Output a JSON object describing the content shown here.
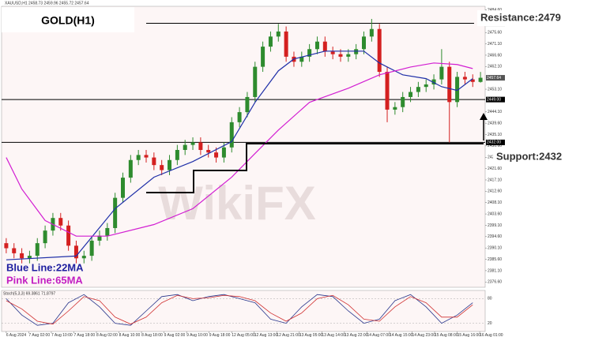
{
  "chart_data": {
    "type": "candlestick",
    "title": "GOLD(H1)",
    "header": "XAUUSD,H1 2458.73 2459.96 2455.72 2457.64",
    "watermark": "WikiFX",
    "annotations": [
      "Resistance:2479",
      "Support:2432",
      "Blue Line:22MA",
      "Pink Line:65MA"
    ],
    "up_color": "#2e8b2e",
    "down_color": "#d42020",
    "open": [
      2392,
      2390,
      2388,
      2386,
      2387,
      2392,
      2397,
      2402,
      2399,
      2391,
      2386,
      2387,
      2393,
      2395,
      2398,
      2410,
      2418,
      2425,
      2427,
      2426,
      2423,
      2421,
      2425,
      2429,
      2431,
      2432,
      2429,
      2428,
      2426,
      2430,
      2440,
      2444,
      2450,
      2462,
      2470,
      2474,
      2476,
      2466,
      2464,
      2466,
      2469,
      2472,
      2468,
      2467,
      2466,
      2467,
      2469,
      2474,
      2477,
      2460,
      2445,
      2446,
      2450,
      2452,
      2454,
      2455,
      2457,
      2462,
      2448,
      2458,
      2457,
      2456
    ],
    "high": [
      2394,
      2392,
      2390,
      2389,
      2394,
      2399,
      2404,
      2404,
      2401,
      2393,
      2389,
      2395,
      2397,
      2400,
      2412,
      2420,
      2427,
      2429,
      2429,
      2428,
      2425,
      2427,
      2431,
      2433,
      2434,
      2434,
      2431,
      2430,
      2432,
      2442,
      2446,
      2452,
      2464,
      2472,
      2476,
      2479,
      2478,
      2468,
      2468,
      2471,
      2474,
      2474,
      2470,
      2469,
      2469,
      2471,
      2476,
      2481,
      2479,
      2462,
      2448,
      2452,
      2454,
      2456,
      2457,
      2459,
      2469,
      2464,
      2460,
      2460,
      2459,
      2459.96
    ],
    "low": [
      2388,
      2386,
      2384,
      2384,
      2385,
      2390,
      2395,
      2397,
      2389,
      2384,
      2384,
      2385,
      2391,
      2393,
      2396,
      2408,
      2416,
      2423,
      2424,
      2421,
      2419,
      2419,
      2423,
      2427,
      2429,
      2427,
      2426,
      2424,
      2424,
      2428,
      2438,
      2442,
      2448,
      2460,
      2468,
      2472,
      2464,
      2462,
      2462,
      2464,
      2467,
      2466,
      2465,
      2464,
      2464,
      2465,
      2467,
      2472,
      2458,
      2440,
      2443,
      2444,
      2448,
      2450,
      2452,
      2453,
      2455,
      2432,
      2446,
      2455,
      2454,
      2455.72
    ],
    "close": [
      2390,
      2388,
      2386,
      2387,
      2392,
      2397,
      2402,
      2399,
      2391,
      2386,
      2387,
      2393,
      2395,
      2398,
      2410,
      2418,
      2425,
      2427,
      2426,
      2423,
      2421,
      2425,
      2429,
      2431,
      2432,
      2429,
      2428,
      2426,
      2430,
      2440,
      2444,
      2450,
      2462,
      2470,
      2474,
      2476,
      2466,
      2464,
      2466,
      2469,
      2472,
      2468,
      2467,
      2466,
      2467,
      2469,
      2474,
      2477,
      2460,
      2445,
      2446,
      2450,
      2452,
      2454,
      2455,
      2457,
      2462,
      2448,
      2458,
      2457,
      2456,
      2457.64
    ],
    "series": [
      {
        "name": "22MA",
        "color": "#1f2fa8",
        "x": [
          0,
          9,
          14,
          19,
          24,
          29,
          32,
          35,
          37,
          41,
          46,
          48,
          51,
          54,
          56,
          58,
          60
        ],
        "values": [
          2385.4,
          2386.9,
          2405.7,
          2418.2,
          2424.4,
          2432.3,
          2447.9,
          2460.4,
          2465.1,
          2468.2,
          2468.2,
          2463.5,
          2458.8,
          2457.3,
          2454.1,
          2452.6,
          2457.3
        ]
      },
      {
        "name": "65MA",
        "color": "#d21ed2",
        "x": [
          0,
          2,
          5,
          9,
          13,
          19,
          24,
          29,
          32,
          35,
          39,
          44,
          48,
          52,
          55,
          58,
          60
        ],
        "values": [
          2426,
          2413.5,
          2401,
          2394.8,
          2394.8,
          2399.4,
          2405.7,
          2418.2,
          2427.6,
          2436.9,
          2447.9,
          2453.5,
          2458.8,
          2461.9,
          2463.5,
          2462.9,
          2461.3
        ]
      }
    ],
    "xlim": [
      -0.6,
      61.6
    ],
    "ylim": [
      2374.5,
      2486
    ],
    "yticks": [
      {
        "value": 2376.6,
        "label": "2376.60"
      },
      {
        "value": 2381.1,
        "label": "2381.10"
      },
      {
        "value": 2385.6,
        "label": "2385.60"
      },
      {
        "value": 2390.1,
        "label": "2390.10"
      },
      {
        "value": 2394.6,
        "label": "2394.60"
      },
      {
        "value": 2399.1,
        "label": "2399.10"
      },
      {
        "value": 2403.6,
        "label": "2403.60"
      },
      {
        "value": 2408.1,
        "label": "2408.10"
      },
      {
        "value": 2412.6,
        "label": "2412.60"
      },
      {
        "value": 2417.1,
        "label": "2417.10"
      },
      {
        "value": 2421.6,
        "label": "2421.60"
      },
      {
        "value": 2426.1,
        "label": "2426.10"
      },
      {
        "value": 2430.6,
        "label": "2430.60"
      },
      {
        "value": 2435.1,
        "label": "2435.10"
      },
      {
        "value": 2439.6,
        "label": "2439.60"
      },
      {
        "value": 2444.1,
        "label": "2444.10"
      },
      {
        "value": 2453.1,
        "label": "2453.10"
      },
      {
        "value": 2462.1,
        "label": "2462.10"
      },
      {
        "value": 2466.6,
        "label": "2466.60"
      },
      {
        "value": 2471.1,
        "label": "2471.10"
      },
      {
        "value": 2475.6,
        "label": "2475.60"
      },
      {
        "value": 2484.6,
        "label": "2484.60"
      }
    ],
    "levels": [
      2479.25,
      {
        "value": 2449,
        "label": "2449.00"
      },
      {
        "value": 2432,
        "label": "2432.00"
      }
    ],
    "price_label": 2457.64,
    "xticks": [
      {
        "value": 0,
        "label": "6 Aug 2024"
      },
      {
        "value": 2.9,
        "label": "7 Aug 02:00"
      },
      {
        "value": 5.8,
        "label": "7 Aug 10:00"
      },
      {
        "value": 8.7,
        "label": "7 Aug 18:00"
      },
      {
        "value": 11.6,
        "label": "8 Aug 02:00"
      },
      {
        "value": 14.5,
        "label": "8 Aug 10:00"
      },
      {
        "value": 17.4,
        "label": "8 Aug 18:00"
      },
      {
        "value": 20.3,
        "label": "9 Aug 02:00"
      },
      {
        "value": 23.2,
        "label": "9 Aug 10:00"
      },
      {
        "value": 26.1,
        "label": "9 Aug 18:00"
      },
      {
        "value": 29,
        "label": "12 Aug 05:00"
      },
      {
        "value": 31.9,
        "label": "12 Aug 13:00"
      },
      {
        "value": 34.8,
        "label": "12 Aug 21:00"
      },
      {
        "value": 37.7,
        "label": "13 Aug 05:00"
      },
      {
        "value": 40.6,
        "label": "13 Aug 14:00"
      },
      {
        "value": 43.5,
        "label": "13 Aug 22:00"
      },
      {
        "value": 46.4,
        "label": "14 Aug 07:00"
      },
      {
        "value": 49.3,
        "label": "14 Aug 15:00"
      },
      {
        "value": 52.2,
        "label": "14 Aug 23:00"
      },
      {
        "value": 55.1,
        "label": "15 Aug 08:00"
      },
      {
        "value": 58,
        "label": "15 Aug 16:00"
      },
      {
        "value": 60.9,
        "label": "16 Aug 01:00"
      }
    ],
    "stoch": {
      "title": "Stoch(5,3,3) 69.3861 71.8797",
      "ylim": [
        0,
        100
      ],
      "yticks": [
        20,
        80
      ],
      "x": [
        0,
        2,
        4,
        6,
        8,
        10,
        12,
        14,
        16,
        18,
        20,
        22,
        24,
        26,
        28,
        30,
        32,
        34,
        36,
        38,
        40,
        42,
        44,
        46,
        48,
        50,
        52,
        54,
        56,
        58,
        60
      ],
      "series": [
        {
          "color": "#27348b",
          "values": [
            80,
            40,
            15,
            20,
            70,
            90,
            60,
            20,
            15,
            50,
            85,
            90,
            75,
            85,
            90,
            80,
            70,
            30,
            20,
            60,
            90,
            85,
            50,
            20,
            30,
            75,
            90,
            60,
            20,
            40,
            70
          ]
        },
        {
          "color": "#d03030",
          "values": [
            75,
            55,
            25,
            18,
            50,
            85,
            75,
            35,
            18,
            35,
            70,
            88,
            80,
            82,
            88,
            85,
            75,
            45,
            25,
            45,
            80,
            88,
            65,
            30,
            25,
            60,
            85,
            70,
            35,
            35,
            65
          ]
        }
      ]
    }
  }
}
